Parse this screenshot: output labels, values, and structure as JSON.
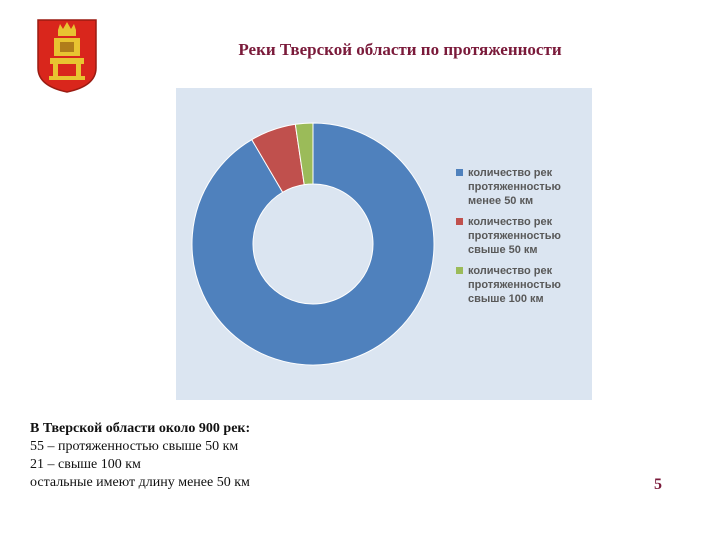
{
  "slide": {
    "title": "Реки Тверской области по протяженности",
    "page_number": "5",
    "description": [
      "В Тверской области около 900 рек:",
      "55 – протяженностью свыше 50 км",
      "21 – свыше 100 км",
      "остальные имеют длину менее 50 км"
    ]
  },
  "colors": {
    "series": [
      "#4f81bd",
      "#c0504d",
      "#9bbb59"
    ],
    "chart_background": "#dbe5f1",
    "title": "#7a1a3a"
  },
  "chart_data": {
    "type": "pie",
    "variant": "doughnut",
    "title": "",
    "categories": [
      "количество рек протяженностью менее 50 км",
      "количество рек протяженностью свыше 50 км",
      "количество рек протяженностью свыше 100 км"
    ],
    "values": [
      824,
      55,
      21
    ],
    "legend_position": "right"
  }
}
